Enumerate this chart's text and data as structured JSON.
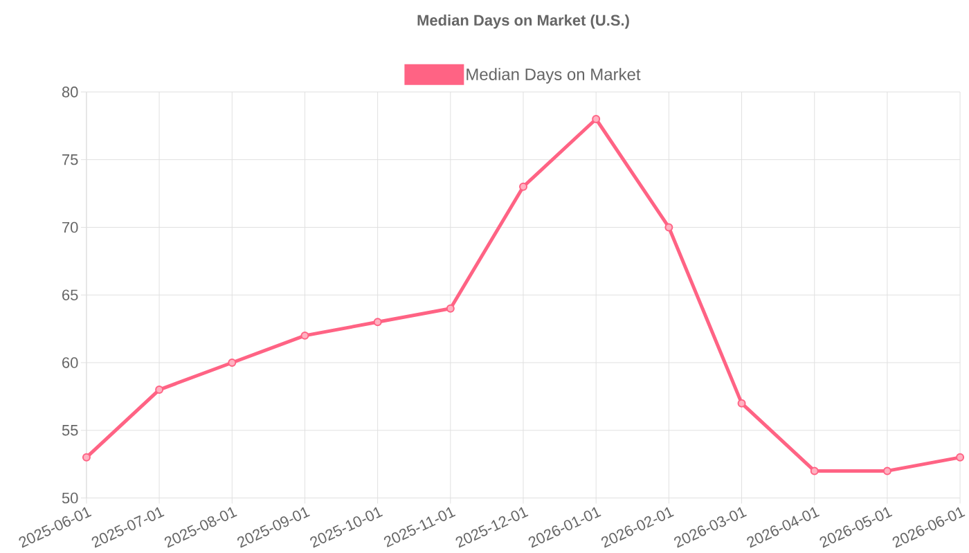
{
  "chart_data": {
    "type": "line",
    "title": "Median Days on Market (U.S.)",
    "categories": [
      "2025-06-01",
      "2025-07-01",
      "2025-08-01",
      "2025-09-01",
      "2025-10-01",
      "2025-11-01",
      "2025-12-01",
      "2026-01-01",
      "2026-02-01",
      "2026-03-01",
      "2026-04-01",
      "2026-05-01",
      "2026-06-01"
    ],
    "series": [
      {
        "name": "Median Days on Market",
        "color": "#ff6384",
        "values": [
          53,
          58,
          60,
          62,
          63,
          64,
          73,
          78,
          70,
          57,
          52,
          52,
          53
        ]
      }
    ],
    "ylim": [
      50,
      80
    ],
    "yticks": [
      50,
      55,
      60,
      65,
      70,
      75,
      80
    ],
    "grid": true,
    "legend": "top",
    "marker": "circle",
    "line_style": "solid"
  }
}
